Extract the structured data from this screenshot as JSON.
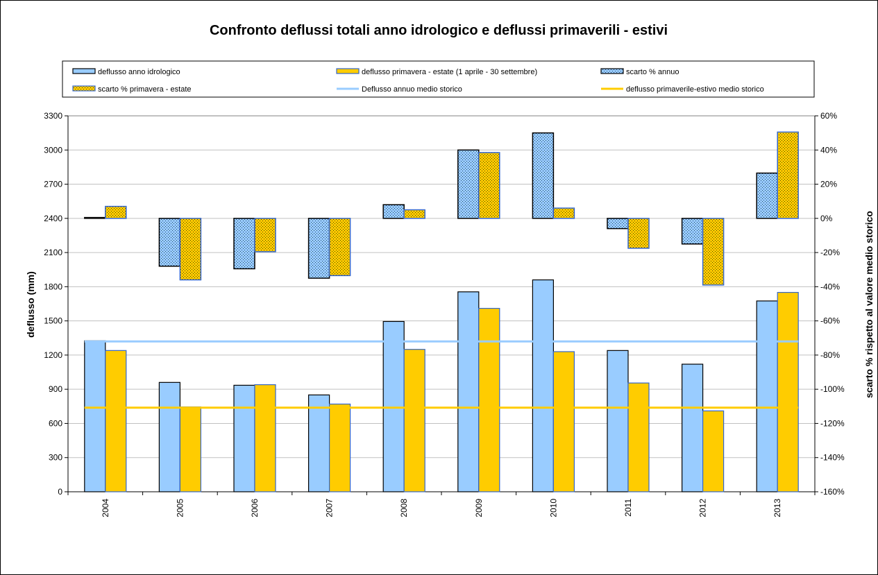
{
  "chart_data": {
    "type": "bar",
    "title": "Confronto deflussi totali anno idrologico e deflussi primaverili - estivi",
    "categories": [
      "2004",
      "2005",
      "2006",
      "2007",
      "2008",
      "2009",
      "2010",
      "2011",
      "2012",
      "2013"
    ],
    "ylabel": "deflusso (mm)",
    "y2label": "scarto % rispetto al valore medio storico",
    "ylim": [
      0,
      3300
    ],
    "y_ticks": [
      "0",
      "300",
      "600",
      "900",
      "1200",
      "1500",
      "1800",
      "2100",
      "2400",
      "2700",
      "3000",
      "3300"
    ],
    "y2lim": [
      -160,
      60
    ],
    "y2_ticks": [
      "-160%",
      "-140%",
      "-120%",
      "-100%",
      "-80%",
      "-60%",
      "-40%",
      "-20%",
      "0%",
      "20%",
      "40%",
      "60%"
    ],
    "grid": true,
    "legend_position": "top",
    "series": [
      {
        "name": "deflusso anno idrologico",
        "axis": "left",
        "kind": "bar",
        "color": "#99ccff",
        "values": [
          1325,
          960,
          935,
          850,
          1495,
          1755,
          1860,
          1240,
          1120,
          1675
        ]
      },
      {
        "name": "deflusso primavera - estate (1 aprile - 30 settembre)",
        "axis": "left",
        "kind": "bar",
        "color": "#ffcc00",
        "values": [
          1240,
          745,
          940,
          770,
          1250,
          1610,
          1230,
          955,
          710,
          1750
        ]
      },
      {
        "name": "scarto % annuo",
        "axis": "right",
        "kind": "bar",
        "pattern": "dotted",
        "color": "#99ccff",
        "values": [
          0.5,
          -28,
          -29.5,
          -35,
          8,
          40,
          50,
          -6,
          -15,
          26.5
        ]
      },
      {
        "name": "scarto % primavera - estate",
        "axis": "right",
        "kind": "bar",
        "pattern": "dotted",
        "color": "#ffcc00",
        "values": [
          7,
          -36,
          -19.5,
          -33.5,
          5,
          38.5,
          6,
          -17.5,
          -39,
          50.5
        ]
      },
      {
        "name": "Deflusso annuo medio storico",
        "axis": "left",
        "kind": "line",
        "color": "#99ccff",
        "values": [
          1320,
          1320,
          1320,
          1320,
          1320,
          1320,
          1320,
          1320,
          1320,
          1320
        ]
      },
      {
        "name": "deflusso primaverile-estivo medio storico",
        "axis": "left",
        "kind": "line",
        "color": "#ffcc00",
        "values": [
          738,
          738,
          738,
          738,
          738,
          738,
          738,
          738,
          738,
          738
        ]
      }
    ]
  }
}
